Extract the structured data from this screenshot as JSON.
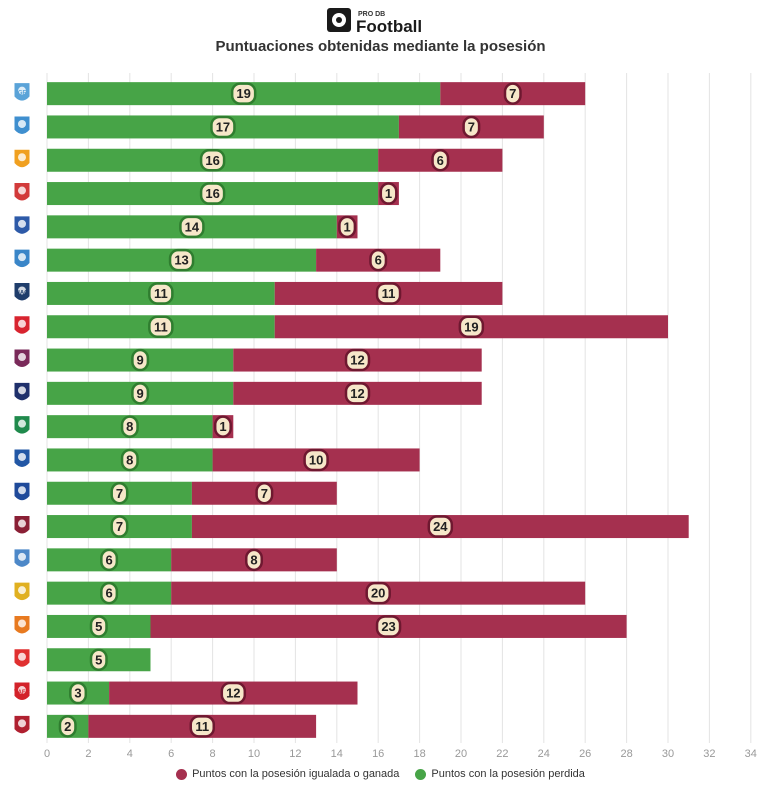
{
  "brand": {
    "small": "PRO DB",
    "name": "Football"
  },
  "title": "Puntuaciones obtenidas mediante la posesión",
  "colors": {
    "lost": "#47a447",
    "won": "#a5304f",
    "label_bg": "#f6e7c9"
  },
  "legend": [
    {
      "key": "won",
      "label": "Puntos con la posesión igualada o ganada",
      "color": "#a5304f"
    },
    {
      "key": "lost",
      "label": "Puntos con la posesión perdida",
      "color": "#47a447"
    }
  ],
  "teams": [
    {
      "icon": "gf38-crest-icon",
      "badge_text": "GF",
      "color": "#5aa3d8"
    },
    {
      "icon": "niort-crest-icon",
      "badge_text": "",
      "color": "#3f8fcf"
    },
    {
      "icon": "quevilly-crest-icon",
      "badge_text": "",
      "color": "#f0a020"
    },
    {
      "icon": "rodez-crest-icon",
      "badge_text": "",
      "color": "#d23a3a"
    },
    {
      "icon": "caen-crest-icon",
      "badge_text": "",
      "color": "#2d5aa8"
    },
    {
      "icon": "estac-crest-icon",
      "badge_text": "",
      "color": "#3a86c8"
    },
    {
      "icon": "hac-crest-icon",
      "badge_text": "HAC",
      "color": "#1f3d6b"
    },
    {
      "icon": "brest-crest-icon",
      "badge_text": "",
      "color": "#d8242f"
    },
    {
      "icon": "clermont-crest-icon",
      "badge_text": "",
      "color": "#7a2a5a"
    },
    {
      "icon": "paris-fc-crest-icon",
      "badge_text": "",
      "color": "#1e2f6b"
    },
    {
      "icon": "red-star-crest-icon",
      "badge_text": "",
      "color": "#1f8a4c"
    },
    {
      "icon": "chambly-crest-icon",
      "badge_text": "",
      "color": "#2257a5"
    },
    {
      "icon": "sochaux-crest-icon",
      "badge_text": "",
      "color": "#1f4a9a"
    },
    {
      "icon": "metz-crest-icon",
      "badge_text": "",
      "color": "#8a1f35"
    },
    {
      "icon": "auxerre-crest-icon",
      "badge_text": "",
      "color": "#4d88c8"
    },
    {
      "icon": "lens-crest-icon",
      "badge_text": "",
      "color": "#e0b020"
    },
    {
      "icon": "lorient-crest-icon",
      "badge_text": "",
      "color": "#e87a20"
    },
    {
      "icon": "nancy-crest-icon",
      "badge_text": "",
      "color": "#e03030"
    },
    {
      "icon": "valenciennes-crest-icon",
      "badge_text": "VAFC",
      "color": "#d3222a"
    },
    {
      "icon": "ajaccio-crest-icon",
      "badge_text": "",
      "color": "#b02030"
    }
  ],
  "chart_data": {
    "type": "bar",
    "orientation": "horizontal",
    "stacked": true,
    "series": [
      {
        "key": "lost",
        "name": "Puntos con la posesión perdida",
        "values": [
          19,
          17,
          16,
          16,
          14,
          13,
          11,
          11,
          9,
          9,
          8,
          8,
          7,
          7,
          6,
          6,
          5,
          5,
          3,
          2
        ]
      },
      {
        "key": "won",
        "name": "Puntos con la posesión igualada o ganada",
        "values": [
          7,
          7,
          6,
          1,
          1,
          6,
          11,
          19,
          12,
          12,
          1,
          10,
          7,
          24,
          8,
          20,
          23,
          0,
          12,
          11
        ]
      }
    ],
    "xlim": [
      0,
      34
    ],
    "xticks": [
      0,
      2,
      4,
      6,
      8,
      10,
      12,
      14,
      16,
      18,
      20,
      22,
      24,
      26,
      28,
      30,
      32,
      34
    ],
    "grid": true,
    "legend_position": "bottom"
  }
}
